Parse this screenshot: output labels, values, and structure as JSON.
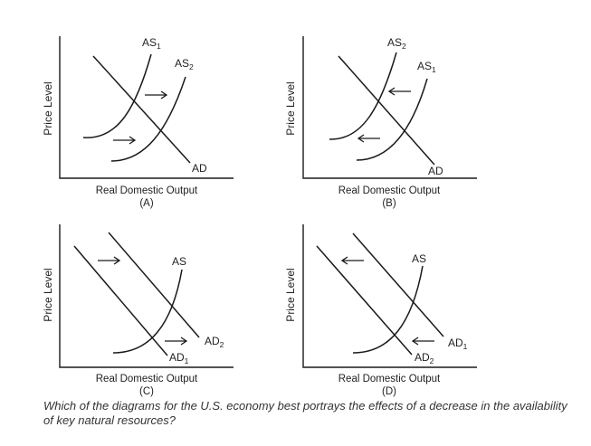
{
  "question": "Which of the diagrams for the U.S. economy best portrays the effects of a decrease in the availability of key natural resources?",
  "axis_labels": {
    "x": "Real Domestic Output",
    "y": "Price Level"
  },
  "panels": [
    {
      "caption": "(A)",
      "labels": [
        {
          "base": "AS",
          "sub": "1"
        },
        {
          "base": "AS",
          "sub": "2"
        },
        {
          "base": "AD",
          "sub": ""
        }
      ]
    },
    {
      "caption": "(B)",
      "labels": [
        {
          "base": "AS",
          "sub": "2"
        },
        {
          "base": "AS",
          "sub": "1"
        },
        {
          "base": "AD",
          "sub": ""
        }
      ]
    },
    {
      "caption": "(C)",
      "labels": [
        {
          "base": "AS",
          "sub": ""
        },
        {
          "base": "AD",
          "sub": "2"
        },
        {
          "base": "AD",
          "sub": "1"
        }
      ]
    },
    {
      "caption": "(D)",
      "labels": [
        {
          "base": "AS",
          "sub": ""
        },
        {
          "base": "AD",
          "sub": "1"
        },
        {
          "base": "AD",
          "sub": "2"
        }
      ]
    }
  ]
}
